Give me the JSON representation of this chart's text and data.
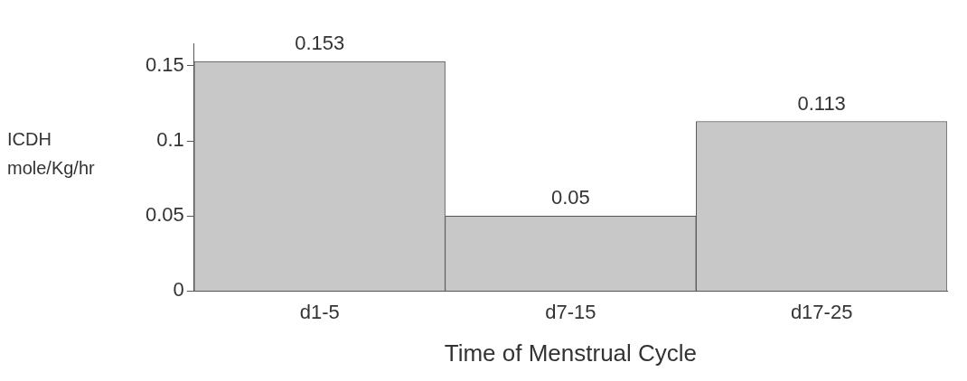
{
  "chart_data": {
    "type": "bar",
    "xlabel": "Time of Menstrual Cycle",
    "ylabel": "ICDH mole/Kg/hr",
    "categories": [
      "d1-5",
      "d7-15",
      "d17-25"
    ],
    "values": [
      0.153,
      0.05,
      0.113
    ],
    "color": "#c8c8c8",
    "ylim": [
      0,
      0.165
    ],
    "yticks": [
      0,
      0.05,
      0.1,
      0.15
    ],
    "grid": false,
    "data_labels": true,
    "legend": false
  }
}
